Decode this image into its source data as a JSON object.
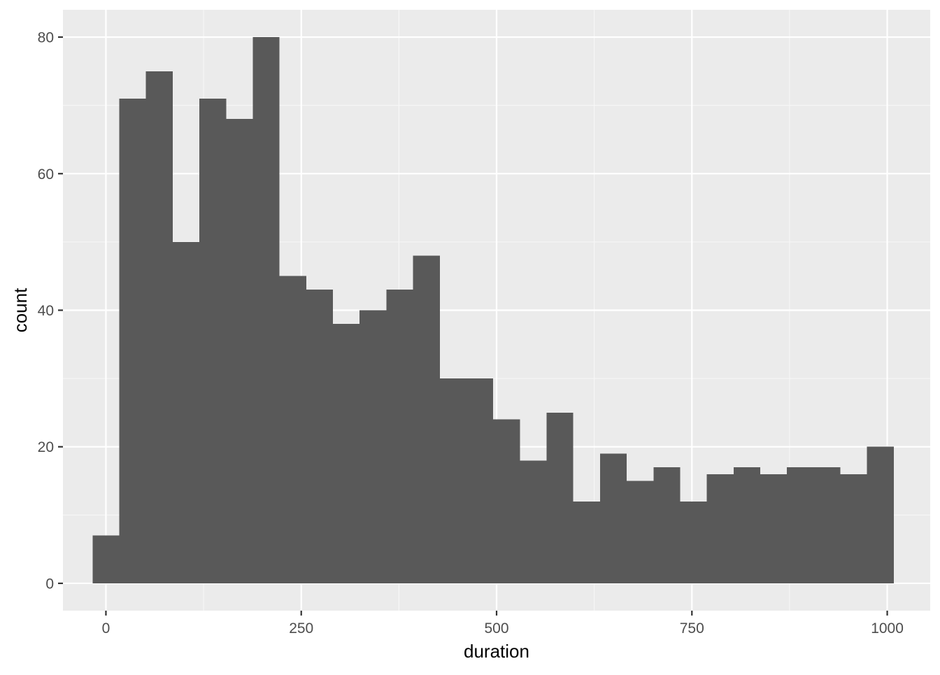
{
  "chart_data": {
    "type": "bar",
    "subtype": "histogram",
    "xlabel": "duration",
    "ylabel": "count",
    "xlim": [
      -55,
      1055
    ],
    "ylim": [
      -4,
      84
    ],
    "x_ticks": [
      0,
      250,
      500,
      750,
      1000
    ],
    "x_tick_labels": [
      "0",
      "250",
      "500",
      "750",
      "1000"
    ],
    "y_ticks": [
      0,
      20,
      40,
      60,
      80
    ],
    "y_tick_labels": [
      "0",
      "20",
      "40",
      "60",
      "80"
    ],
    "grid": true,
    "bin_width": 34.18,
    "bins": [
      {
        "x_start": -17.1,
        "x_end": 17.1,
        "count": 7
      },
      {
        "x_start": 17.1,
        "x_end": 51.3,
        "count": 71
      },
      {
        "x_start": 51.3,
        "x_end": 85.5,
        "count": 75
      },
      {
        "x_start": 85.5,
        "x_end": 119.6,
        "count": 50
      },
      {
        "x_start": 119.6,
        "x_end": 153.8,
        "count": 71
      },
      {
        "x_start": 153.8,
        "x_end": 188.0,
        "count": 68
      },
      {
        "x_start": 188.0,
        "x_end": 222.2,
        "count": 80
      },
      {
        "x_start": 222.2,
        "x_end": 256.4,
        "count": 45
      },
      {
        "x_start": 256.4,
        "x_end": 290.6,
        "count": 43
      },
      {
        "x_start": 290.6,
        "x_end": 324.7,
        "count": 38
      },
      {
        "x_start": 324.7,
        "x_end": 358.9,
        "count": 40
      },
      {
        "x_start": 358.9,
        "x_end": 393.1,
        "count": 43
      },
      {
        "x_start": 393.1,
        "x_end": 427.3,
        "count": 48
      },
      {
        "x_start": 427.3,
        "x_end": 461.5,
        "count": 30
      },
      {
        "x_start": 461.5,
        "x_end": 495.7,
        "count": 30
      },
      {
        "x_start": 495.7,
        "x_end": 529.9,
        "count": 24
      },
      {
        "x_start": 529.9,
        "x_end": 564.0,
        "count": 18
      },
      {
        "x_start": 564.0,
        "x_end": 598.2,
        "count": 25
      },
      {
        "x_start": 598.2,
        "x_end": 632.4,
        "count": 12
      },
      {
        "x_start": 632.4,
        "x_end": 666.6,
        "count": 19
      },
      {
        "x_start": 666.6,
        "x_end": 700.8,
        "count": 15
      },
      {
        "x_start": 700.8,
        "x_end": 735.0,
        "count": 17
      },
      {
        "x_start": 735.0,
        "x_end": 769.1,
        "count": 12
      },
      {
        "x_start": 769.1,
        "x_end": 803.3,
        "count": 16
      },
      {
        "x_start": 803.3,
        "x_end": 837.5,
        "count": 17
      },
      {
        "x_start": 837.5,
        "x_end": 871.7,
        "count": 16
      },
      {
        "x_start": 871.7,
        "x_end": 905.9,
        "count": 17
      },
      {
        "x_start": 905.9,
        "x_end": 940.1,
        "count": 17
      },
      {
        "x_start": 940.1,
        "x_end": 974.2,
        "count": 16
      },
      {
        "x_start": 974.2,
        "x_end": 1008.4,
        "count": 20
      }
    ]
  },
  "colors": {
    "panel_background": "#EBEBEB",
    "grid_major": "#FFFFFF",
    "grid_minor": "#F7F7F7",
    "bar_fill": "#595959",
    "tick_label": "#4D4D4D",
    "tick_mark": "#333333",
    "axis_title": "#000000"
  }
}
